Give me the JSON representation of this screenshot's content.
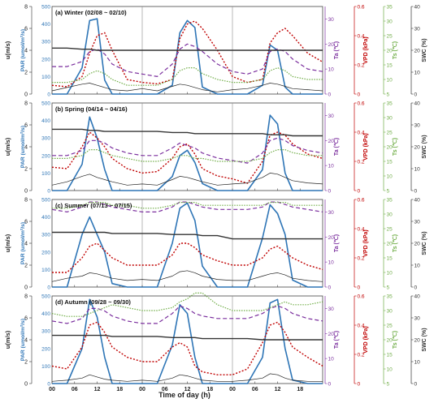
{
  "figure": {
    "xlabel": "Time of day (h)",
    "x_ticks": [
      "00",
      "06",
      "12",
      "18",
      "00",
      "06",
      "12",
      "18",
      "00",
      "06",
      "12",
      "18"
    ],
    "axes": {
      "u": {
        "label": "u(m/s)",
        "ticks": [
          "0",
          "2",
          "4",
          "6",
          "8"
        ],
        "color": "#222222"
      },
      "par": {
        "label": "PAR (umol/m²/s)",
        "ticks": [
          "0",
          "100",
          "200",
          "300",
          "400",
          "500"
        ],
        "color": "#2e75b6"
      },
      "ta": {
        "label": "Ta (℃)",
        "ticks": [
          "0",
          "10",
          "20",
          "30"
        ],
        "color": "#7b2f9e"
      },
      "vpd": {
        "label": "VPD (kPa)",
        "ticks": [
          "0",
          "0.2",
          "0.4",
          "0.6"
        ],
        "color": "#c00000"
      },
      "ts": {
        "label": "Ts (℃)",
        "ticks": [
          "5",
          "10",
          "15",
          "20",
          "25",
          "30",
          "35"
        ],
        "color": "#70ad47"
      },
      "swc": {
        "label": "SWC (%)",
        "ticks": [
          "0",
          "10",
          "20",
          "30",
          "40"
        ],
        "color": "#333333"
      }
    }
  },
  "chart_data": [
    {
      "type": "line",
      "title": "(a) Winter (02/08 ~ 02/10)",
      "x": [
        0,
        4,
        8,
        10,
        12,
        14,
        16,
        20,
        24,
        28,
        32,
        34,
        36,
        38,
        40,
        44,
        48,
        52,
        56,
        58,
        60,
        62,
        64,
        68,
        72
      ],
      "series": [
        {
          "name": "PAR",
          "values": [
            0,
            0,
            150,
            420,
            430,
            80,
            0,
            0,
            0,
            0,
            50,
            350,
            420,
            380,
            40,
            0,
            0,
            0,
            50,
            280,
            250,
            40,
            0,
            0,
            0
          ]
        },
        {
          "name": "VPD",
          "values": [
            0.06,
            0.05,
            0.12,
            0.28,
            0.4,
            0.42,
            0.3,
            0.1,
            0.08,
            0.07,
            0.1,
            0.38,
            0.48,
            0.5,
            0.45,
            0.3,
            0.12,
            0.08,
            0.1,
            0.35,
            0.42,
            0.45,
            0.4,
            0.28,
            0.22
          ]
        },
        {
          "name": "Ta",
          "values": [
            11,
            11,
            13,
            17,
            18,
            16,
            12,
            9,
            8,
            7,
            12,
            18,
            20,
            19,
            17,
            12,
            9,
            8,
            10,
            17,
            18,
            17,
            14,
            10,
            9
          ]
        },
        {
          "name": "Ts",
          "values": [
            9,
            9,
            10,
            12,
            13,
            12,
            10,
            8,
            8,
            8,
            10,
            13,
            14,
            14,
            12,
            10,
            9,
            9,
            10,
            13,
            14,
            13,
            11,
            10,
            10
          ]
        },
        {
          "name": "SWC",
          "values": [
            21,
            21,
            20.5,
            20.5,
            20,
            20,
            20,
            20,
            20,
            20,
            20,
            20,
            20,
            20,
            20,
            20,
            20,
            20,
            20,
            20,
            20,
            20,
            20,
            20,
            20
          ]
        },
        {
          "name": "u",
          "values": [
            0.3,
            0.6,
            0.9,
            1.0,
            0.8,
            0.6,
            0.4,
            0.3,
            0.5,
            0.3,
            0.7,
            0.9,
            0.8,
            0.6,
            0.4,
            0.2,
            0.4,
            0.5,
            0.8,
            1.0,
            0.9,
            0.7,
            0.5,
            0.4,
            0.3
          ]
        }
      ]
    },
    {
      "type": "line",
      "title": "(b) Spring (04/14 ~ 04/16)",
      "x": [
        0,
        4,
        8,
        10,
        12,
        14,
        16,
        20,
        24,
        28,
        32,
        34,
        36,
        38,
        40,
        44,
        48,
        52,
        56,
        58,
        60,
        62,
        64,
        68,
        72
      ],
      "series": [
        {
          "name": "PAR",
          "values": [
            0,
            0,
            150,
            420,
            300,
            120,
            0,
            0,
            0,
            0,
            80,
            200,
            230,
            160,
            40,
            0,
            0,
            0,
            120,
            430,
            380,
            100,
            0,
            0,
            0
          ]
        },
        {
          "name": "VPD",
          "values": [
            0.16,
            0.15,
            0.3,
            0.4,
            0.36,
            0.3,
            0.22,
            0.15,
            0.12,
            0.13,
            0.22,
            0.3,
            0.32,
            0.25,
            0.15,
            0.1,
            0.08,
            0.05,
            0.2,
            0.38,
            0.4,
            0.38,
            0.32,
            0.25,
            0.22
          ]
        },
        {
          "name": "Ta",
          "values": [
            14,
            14,
            16,
            20,
            20,
            19,
            17,
            15,
            14,
            14,
            17,
            19,
            18,
            17,
            15,
            13,
            12,
            11,
            15,
            20,
            21,
            20,
            18,
            16,
            15
          ]
        },
        {
          "name": "Ts",
          "values": [
            16,
            16,
            17,
            19,
            19,
            18,
            17,
            16,
            15,
            15,
            16,
            17,
            17,
            16,
            16,
            15,
            15,
            15,
            16,
            18,
            19,
            19,
            18,
            17,
            17
          ]
        },
        {
          "name": "SWC",
          "values": [
            28,
            28,
            28,
            27.5,
            27.5,
            27,
            27,
            27,
            27,
            27,
            26.5,
            26.5,
            26.5,
            26,
            26,
            26,
            26,
            26,
            26,
            25.5,
            25.5,
            25.5,
            25,
            25,
            25
          ]
        },
        {
          "name": "u",
          "values": [
            0.5,
            0.8,
            1.3,
            1.5,
            1.2,
            1.0,
            0.8,
            0.5,
            0.6,
            0.5,
            1.0,
            1.3,
            1.2,
            1.0,
            0.8,
            0.5,
            0.6,
            0.7,
            1.2,
            1.6,
            1.5,
            1.2,
            0.9,
            0.7,
            0.6
          ]
        }
      ]
    },
    {
      "type": "line",
      "title": "(c) Summer (07/13 ~ 07/15)",
      "x": [
        0,
        4,
        8,
        10,
        12,
        14,
        16,
        20,
        24,
        28,
        32,
        34,
        36,
        38,
        40,
        44,
        48,
        52,
        56,
        58,
        60,
        62,
        64,
        68,
        72
      ],
      "series": [
        {
          "name": "PAR",
          "values": [
            0,
            0,
            300,
            400,
            300,
            200,
            20,
            0,
            0,
            0,
            250,
            450,
            480,
            380,
            120,
            0,
            0,
            0,
            280,
            470,
            420,
            300,
            40,
            0,
            0
          ]
        },
        {
          "name": "VPD",
          "values": [
            0.1,
            0.1,
            0.2,
            0.28,
            0.3,
            0.25,
            0.2,
            0.15,
            0.15,
            0.15,
            0.22,
            0.3,
            0.3,
            0.27,
            0.22,
            0.18,
            0.15,
            0.15,
            0.2,
            0.26,
            0.28,
            0.24,
            0.2,
            0.15,
            0.12
          ]
        },
        {
          "name": "Ta",
          "values": [
            31,
            30,
            32,
            34,
            34,
            33,
            32,
            31,
            30,
            30,
            32,
            34,
            34,
            33,
            32,
            31,
            31,
            31,
            32,
            34,
            34,
            33,
            32,
            31,
            30
          ]
        },
        {
          "name": "Ts",
          "values": [
            32,
            32,
            33,
            34,
            34,
            34,
            33,
            33,
            32,
            32,
            33,
            34,
            34,
            34,
            33,
            33,
            33,
            33,
            33,
            34,
            34,
            34,
            33,
            33,
            33
          ]
        },
        {
          "name": "SWC",
          "values": [
            25,
            25,
            25,
            25,
            25,
            25,
            24.5,
            24.5,
            24.5,
            24.5,
            24,
            24,
            24,
            24,
            23.5,
            23.5,
            22,
            22,
            22,
            22,
            22,
            22,
            22,
            22,
            22
          ]
        },
        {
          "name": "u",
          "values": [
            0.5,
            0.8,
            1.0,
            1.3,
            1.2,
            1.0,
            0.8,
            0.6,
            0.7,
            0.6,
            1.0,
            1.4,
            1.5,
            1.3,
            1.0,
            0.7,
            0.6,
            0.6,
            1.0,
            1.2,
            1.3,
            1.1,
            0.8,
            0.6,
            0.5
          ]
        }
      ]
    },
    {
      "type": "line",
      "title": "(d) Autumn (09/28 ~ 09/30)",
      "x": [
        0,
        4,
        8,
        10,
        12,
        14,
        16,
        20,
        24,
        28,
        32,
        34,
        36,
        38,
        40,
        44,
        48,
        52,
        56,
        58,
        60,
        62,
        64,
        68,
        72
      ],
      "series": [
        {
          "name": "PAR",
          "values": [
            0,
            0,
            200,
            480,
            380,
            150,
            0,
            0,
            0,
            0,
            220,
            450,
            400,
            150,
            0,
            0,
            0,
            0,
            150,
            460,
            480,
            200,
            20,
            0,
            0
          ]
        },
        {
          "name": "VPD",
          "values": [
            0.12,
            0.1,
            0.25,
            0.4,
            0.42,
            0.35,
            0.25,
            0.18,
            0.15,
            0.15,
            0.25,
            0.28,
            0.25,
            0.12,
            0.08,
            0.06,
            0.06,
            0.1,
            0.28,
            0.4,
            0.42,
            0.35,
            0.25,
            0.18,
            0.12
          ]
        },
        {
          "name": "Ta",
          "values": [
            25,
            24,
            26,
            30,
            30,
            29,
            27,
            25,
            24,
            24,
            28,
            31,
            30,
            28,
            27,
            26,
            26,
            26,
            28,
            30,
            31,
            30,
            28,
            26,
            25
          ]
        },
        {
          "name": "Ts",
          "values": [
            29,
            28,
            28,
            29,
            30,
            31,
            32,
            31,
            30,
            30,
            31,
            33,
            34,
            36,
            36,
            32,
            30,
            30,
            30,
            31,
            32,
            33,
            32,
            32,
            33
          ]
        },
        {
          "name": "SWC",
          "values": [
            22,
            22,
            22,
            22,
            22,
            22,
            21.5,
            21.5,
            21.5,
            21.5,
            21,
            21,
            21,
            21,
            20.5,
            20.5,
            20.5,
            20.5,
            20,
            20,
            20,
            20,
            20,
            20,
            20
          ]
        },
        {
          "name": "u",
          "values": [
            0.2,
            0.3,
            0.5,
            0.8,
            0.6,
            0.4,
            0.3,
            0.2,
            0.3,
            0.2,
            0.5,
            0.8,
            0.7,
            0.5,
            0.3,
            0.2,
            0.2,
            0.3,
            0.5,
            0.9,
            0.8,
            0.5,
            0.3,
            0.2,
            0.2
          ]
        }
      ]
    }
  ]
}
